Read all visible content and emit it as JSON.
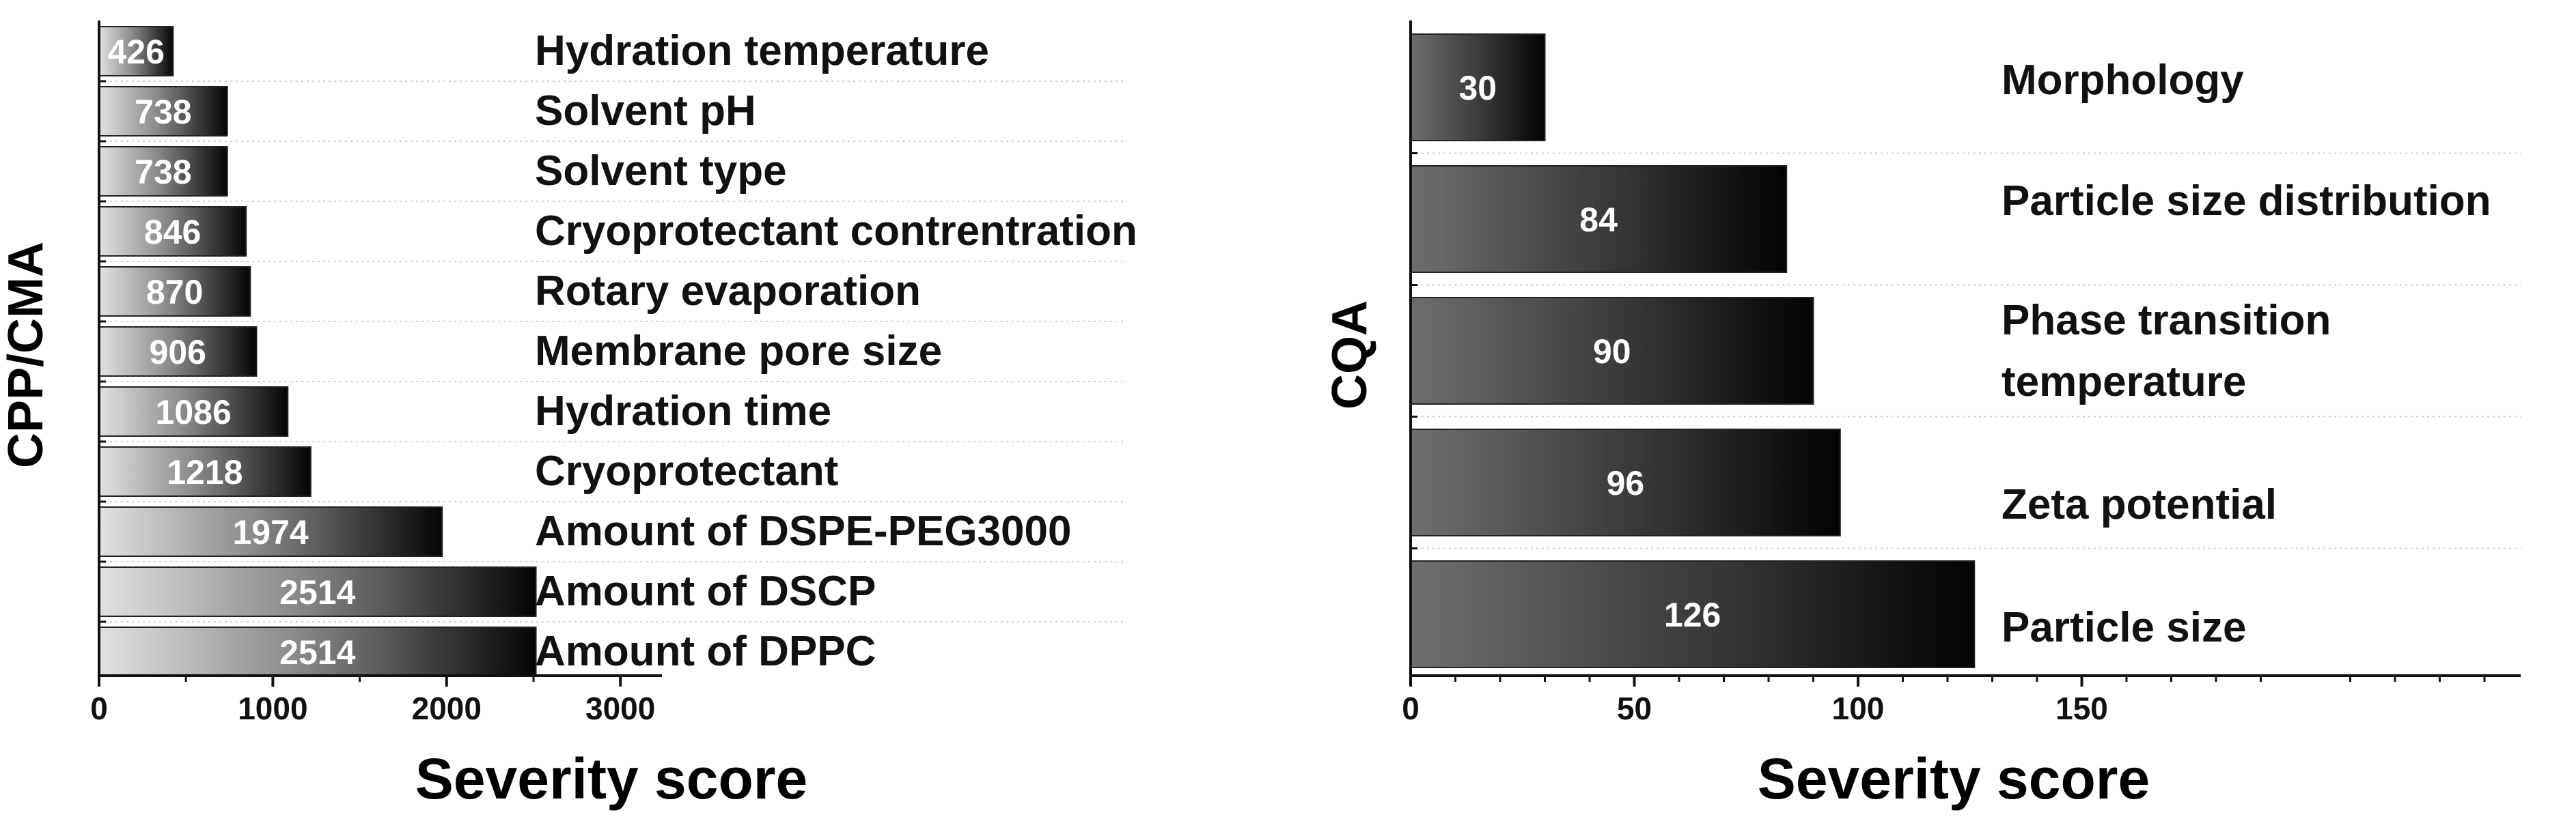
{
  "chart_data": [
    {
      "type": "bar",
      "orientation": "horizontal",
      "ylabel": "CPP/CMA",
      "xlabel": "Severity score",
      "categories": [
        "Hydration temperature",
        "Solvent pH",
        "Solvent type",
        "Cryoprotectant contrentration",
        "Rotary evaporation",
        "Membrane pore size",
        "Hydration time",
        "Cryoprotectant",
        "Amount of DSPE-PEG3000",
        "Amount of DSCP",
        "Amount of DPPC"
      ],
      "values": [
        426,
        738,
        738,
        846,
        870,
        906,
        1086,
        1218,
        1974,
        2514,
        2514
      ],
      "value_labels": [
        "426",
        "738",
        "738",
        "846",
        "870",
        "906",
        "1086",
        "1218",
        "1974",
        "2514",
        "2514"
      ],
      "xlim": [
        0,
        3200
      ],
      "xticks": [
        0,
        1000,
        2000,
        3000
      ],
      "xtick_labels": [
        "0",
        "1000",
        "2000",
        "3000"
      ],
      "grid": "dotted horizontal separators between categories",
      "bar_fill": "gradient light-grey to black"
    },
    {
      "type": "bar",
      "orientation": "horizontal",
      "ylabel": "CQA",
      "xlabel": "Severity score",
      "categories": [
        [
          "Morphology"
        ],
        [
          "Particle size distribution"
        ],
        [
          "Phase transition",
          "temperature"
        ],
        [
          "Zeta potential"
        ],
        [
          "Particle size"
        ]
      ],
      "values": [
        30,
        84,
        90,
        96,
        126
      ],
      "value_labels": [
        "30",
        "84",
        "90",
        "96",
        "126"
      ],
      "xlim": [
        0,
        250
      ],
      "xticks": [
        0,
        50,
        100,
        150
      ],
      "xtick_labels": [
        "0",
        "50",
        "100",
        "150"
      ],
      "grid": "dotted horizontal separators between categories",
      "bar_fill": "gradient mid-grey to black"
    }
  ],
  "colors": {
    "axis": "#111111",
    "bar_left": "#d8d8d8",
    "bar_right": "#000000",
    "bar_left_right_chart": "#7a7a7a",
    "value_text": "#ffffff",
    "grid": "#c8c8c8"
  }
}
